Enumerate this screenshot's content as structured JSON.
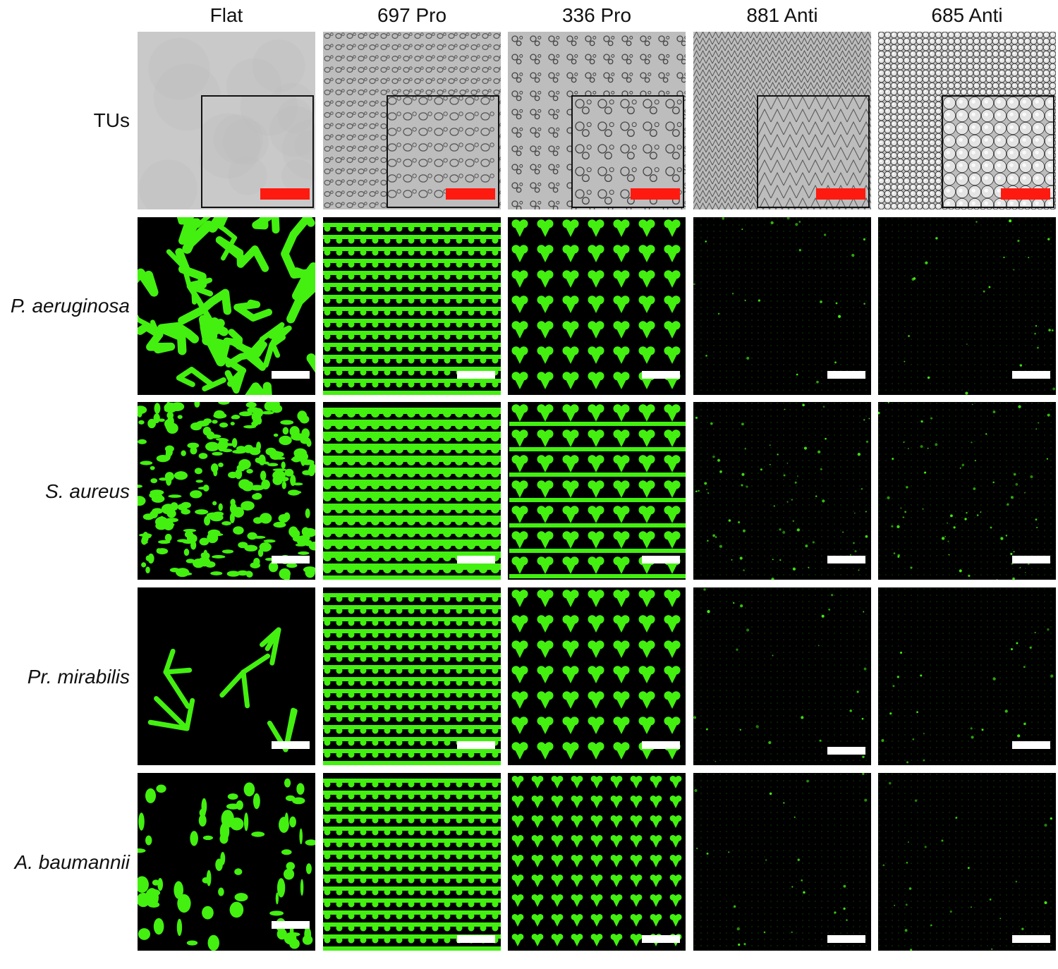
{
  "columns": [
    "Flat",
    "697 Pro",
    "336 Pro",
    "881 Anti",
    "685 Anti"
  ],
  "rows": [
    "TUs",
    "P. aeruginosa",
    "S. aureus",
    "Pr. mirabilis",
    "A. baumannii"
  ],
  "colors": {
    "background": "#ffffff",
    "fluorescence": "#43f010",
    "dark_field": "#000000",
    "scale_bar_brightfield": "#ff1a10",
    "scale_bar_fluorescence": "#ffffff",
    "brightfield": "#c4c4c4"
  }
}
